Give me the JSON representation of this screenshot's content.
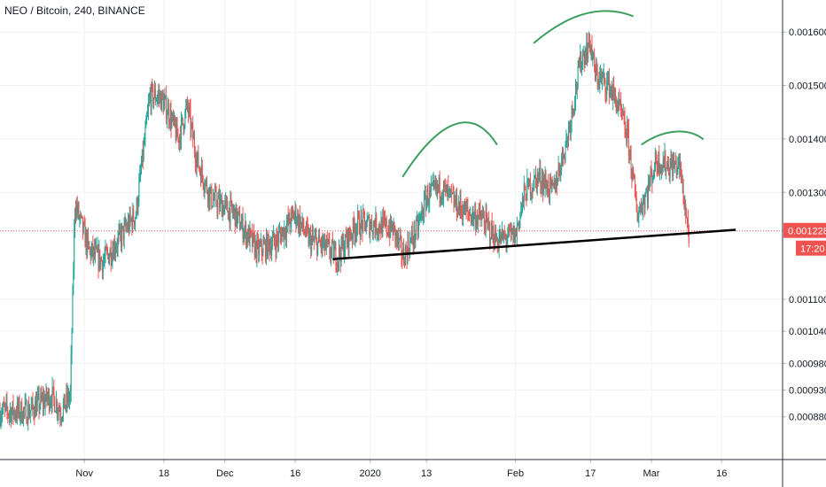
{
  "chart_data": {
    "type": "candlestick",
    "title": "NEO / Bitcoin, 240, BINANCE",
    "symbol": "NEO / Bitcoin",
    "interval": "240",
    "exchange": "BINANCE",
    "y_axis_position": "right",
    "ylim": [
      0.0008,
      0.00166
    ],
    "ytick_values": [
      0.00088,
      0.00093,
      0.00098,
      0.00104,
      0.0011,
      0.0013,
      0.0014,
      0.0015,
      0.0016
    ],
    "ytick_labels": [
      "0.000880",
      "0.000930",
      "0.000980",
      "0.001040",
      "0.001100",
      "0.001300",
      "0.001400",
      "0.001500",
      "0.001600"
    ],
    "xlim": [
      "2019-10-14",
      "2020-03-29"
    ],
    "xtick_values": [
      "2019-11-01",
      "2019-11-18",
      "2019-12-01",
      "2019-12-16",
      "2020-01-01",
      "2020-01-13",
      "2020-02-01",
      "2020-02-17",
      "2020-03-01",
      "2020-03-16"
    ],
    "xtick_labels": [
      "Nov",
      "18",
      "Dec",
      "16",
      "2020",
      "13",
      "Feb",
      "17",
      "Mar",
      "16"
    ],
    "last_price": 0.001228,
    "last_price_label": "0.001228",
    "countdown_label": "17:20",
    "colors": {
      "up": "#26a69a",
      "down": "#ef5350",
      "annotation": "#3d9e5e",
      "trendline": "#000000",
      "price_line": "#ef5350"
    },
    "price_path": [
      [
        "2019-10-14",
        0.00089
      ],
      [
        "2019-10-20",
        0.00089
      ],
      [
        "2019-10-25",
        0.00092
      ],
      [
        "2019-10-27",
        0.00089
      ],
      [
        "2019-10-29",
        0.00092
      ],
      [
        "2019-10-30",
        0.00128
      ],
      [
        "2019-11-02",
        0.00119
      ],
      [
        "2019-11-05",
        0.00117
      ],
      [
        "2019-11-09",
        0.00122
      ],
      [
        "2019-11-12",
        0.00126
      ],
      [
        "2019-11-15",
        0.00148
      ],
      [
        "2019-11-17",
        0.00148
      ],
      [
        "2019-11-19",
        0.00145
      ],
      [
        "2019-11-21",
        0.0014
      ],
      [
        "2019-11-23",
        0.00146
      ],
      [
        "2019-11-25",
        0.00136
      ],
      [
        "2019-11-28",
        0.00129
      ],
      [
        "2019-12-03",
        0.00126
      ],
      [
        "2019-12-08",
        0.00119
      ],
      [
        "2019-12-12",
        0.00121
      ],
      [
        "2019-12-16",
        0.00126
      ],
      [
        "2019-12-19",
        0.00121
      ],
      [
        "2019-12-22",
        0.0012
      ],
      [
        "2019-12-25",
        0.00118
      ],
      [
        "2019-12-29",
        0.00124
      ],
      [
        "2020-01-02",
        0.00124
      ],
      [
        "2020-01-06",
        0.00123
      ],
      [
        "2020-01-08",
        0.00118
      ],
      [
        "2020-01-11",
        0.00123
      ],
      [
        "2020-01-13",
        0.00129
      ],
      [
        "2020-01-16",
        0.00131
      ],
      [
        "2020-01-19",
        0.00128
      ],
      [
        "2020-01-22",
        0.00126
      ],
      [
        "2020-01-25",
        0.00125
      ],
      [
        "2020-01-28",
        0.00121
      ],
      [
        "2020-02-01",
        0.00122
      ],
      [
        "2020-02-03",
        0.0013
      ],
      [
        "2020-02-06",
        0.00133
      ],
      [
        "2020-02-09",
        0.0013
      ],
      [
        "2020-02-12",
        0.0014
      ],
      [
        "2020-02-15",
        0.00155
      ],
      [
        "2020-02-17",
        0.00158
      ],
      [
        "2020-02-18",
        0.00152
      ],
      [
        "2020-02-21",
        0.0015
      ],
      [
        "2020-02-23",
        0.00146
      ],
      [
        "2020-02-25",
        0.0014
      ],
      [
        "2020-02-27",
        0.00126
      ],
      [
        "2020-02-29",
        0.0013
      ],
      [
        "2020-03-02",
        0.00136
      ],
      [
        "2020-03-05",
        0.00135
      ],
      [
        "2020-03-07",
        0.00135
      ],
      [
        "2020-03-09",
        0.00122
      ]
    ],
    "annotations": {
      "support_trendline": [
        [
          "2019-12-24",
          0.001175
        ],
        [
          "2020-03-19",
          0.00123
        ]
      ],
      "arcs": [
        [
          [
            "2020-01-08",
            0.00133
          ],
          [
            "2020-01-16",
            0.00144
          ],
          [
            "2020-01-23",
            0.00146
          ],
          [
            "2020-01-28",
            0.00139
          ]
        ],
        [
          [
            "2020-02-05",
            0.00158
          ],
          [
            "2020-02-13",
            0.00164
          ],
          [
            "2020-02-20",
            0.00165
          ],
          [
            "2020-02-26",
            0.00163
          ]
        ],
        [
          [
            "2020-02-28",
            0.00139
          ],
          [
            "2020-03-04",
            0.00142
          ],
          [
            "2020-03-09",
            0.00142
          ],
          [
            "2020-03-12",
            0.0014
          ]
        ]
      ]
    }
  }
}
